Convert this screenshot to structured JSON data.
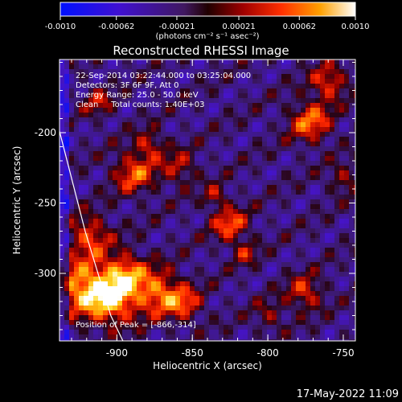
{
  "chart_data": {
    "type": "heatmap",
    "title": "Reconstructed RHESSI Image",
    "xlabel": "Heliocentric X (arcsec)",
    "ylabel": "Heliocentric Y (arcsec)",
    "xlim": [
      -938,
      -742
    ],
    "ylim": [
      -348,
      -148
    ],
    "x_ticks": [
      -900,
      -850,
      -800,
      -750
    ],
    "x_tick_labels": [
      "-900",
      "-850",
      "-800",
      "-750"
    ],
    "y_ticks": [
      -200,
      -250,
      -300
    ],
    "y_tick_labels": [
      "-200",
      "-250",
      "-300"
    ],
    "colorbar": {
      "range": [
        -0.001,
        0.001
      ],
      "ticks": [
        -0.001,
        -0.00062,
        -0.00021,
        0.00021,
        0.00062,
        0.001
      ],
      "tick_labels": [
        "-0.0010",
        "-0.00062",
        "-0.00021",
        "0.00021",
        "0.00062",
        "0.0010"
      ],
      "unit_label": "(photons cm⁻² s⁻¹ asec⁻²)",
      "colors": [
        "#0010ff",
        "#4a10c0",
        "#3a1a70",
        "#200000",
        "#c01010",
        "#ff7000",
        "#ffd000",
        "#ffffff"
      ]
    },
    "annotations": [
      "22-Sep-2014 03:22:44.000 to 03:25:04.000",
      "Detectors: 3F 6F 9F, Att 0",
      "Energy Range: 25.0 - 50.0 keV",
      "Clean     Total counts: 1.40E+03"
    ],
    "peak": {
      "label": "Position of Peak = [-866,-314]",
      "x": -866,
      "y": -314
    },
    "limb": [
      [
        -938,
        -199
      ],
      [
        -921,
        -270
      ],
      [
        -904,
        -330
      ],
      [
        -896,
        -348
      ]
    ],
    "grid": false
  },
  "footer": {
    "timestamp": "17-May-2022 11:09"
  }
}
